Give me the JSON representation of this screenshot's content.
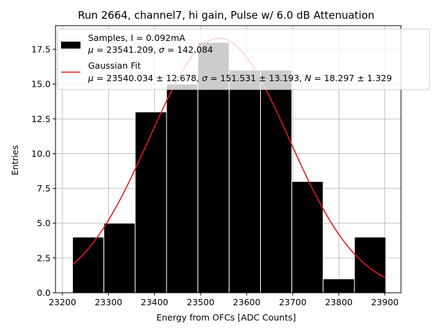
{
  "chart_data": {
    "type": "histogram",
    "title": "Run 2664, channel7, hi gain, Pulse w/ 6.0 dB Attenuation",
    "xlabel": "Energy from OFCs [ADC Counts]",
    "ylabel": "Entries",
    "xlim": [
      23185,
      23935
    ],
    "ylim": [
      0,
      19.2
    ],
    "xticks": [
      23200,
      23300,
      23400,
      23500,
      23600,
      23700,
      23800,
      23900
    ],
    "yticks": [
      "0.0",
      "2.5",
      "5.0",
      "7.5",
      "10.0",
      "12.5",
      "15.0",
      "17.5"
    ],
    "grid": true,
    "legend_position": "top",
    "bins": [
      {
        "x0": 23222,
        "x1": 23290,
        "count": 4
      },
      {
        "x0": 23290,
        "x1": 23358,
        "count": 5
      },
      {
        "x0": 23358,
        "x1": 23426,
        "count": 13
      },
      {
        "x0": 23426,
        "x1": 23494,
        "count": 15
      },
      {
        "x0": 23494,
        "x1": 23562,
        "count": 18
      },
      {
        "x0": 23562,
        "x1": 23630,
        "count": 16
      },
      {
        "x0": 23630,
        "x1": 23698,
        "count": 16
      },
      {
        "x0": 23698,
        "x1": 23766,
        "count": 8
      },
      {
        "x0": 23766,
        "x1": 23834,
        "count": 1
      },
      {
        "x0": 23834,
        "x1": 23902,
        "count": 4
      }
    ],
    "fit": {
      "mu": 23540.034,
      "sigma": 151.531,
      "N": 18.297,
      "x_range": [
        23222,
        23902
      ]
    },
    "colors": {
      "bars": "#000000",
      "bar_edge": "#ffffff",
      "fit": "#e41a1c",
      "grid": "#b0b0b0"
    },
    "legend": [
      {
        "kind": "bar",
        "line1": "Samples, I = 0.092mA",
        "line2": "μ = 23541.209, σ = 142.084"
      },
      {
        "kind": "line",
        "line1": "Gaussian Fit",
        "line2": "μ = 23540.034 ± 12.678, σ = 151.531 ± 13.193, N = 18.297 ± 1.329"
      }
    ]
  }
}
